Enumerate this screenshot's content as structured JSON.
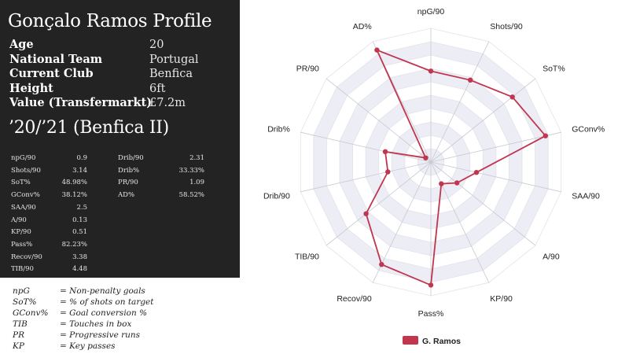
{
  "profile": {
    "title": "Gonçalo Ramos Profile",
    "rows": [
      {
        "label": "Age",
        "value": "20"
      },
      {
        "label": "National Team",
        "value": "Portugal"
      },
      {
        "label": "Current Club",
        "value": "Benfica"
      },
      {
        "label": "Height",
        "value": "6ft"
      },
      {
        "label": "Value (Transfermarkt)",
        "value": "£7.2m"
      }
    ],
    "season": "’20/’21 (Benfica II)",
    "stats_left": [
      {
        "label": "npG/90",
        "value": "0.9"
      },
      {
        "label": "Shots/90",
        "value": "3.14"
      },
      {
        "label": "SoT%",
        "value": "48.98%"
      },
      {
        "label": "GConv%",
        "value": "38.12%"
      },
      {
        "label": "SAA/90",
        "value": "2.5"
      },
      {
        "label": "A/90",
        "value": "0.13"
      },
      {
        "label": "KP/90",
        "value": "0.51"
      },
      {
        "label": "Pass%",
        "value": "82.23%"
      },
      {
        "label": "Recov/90",
        "value": "3.38"
      },
      {
        "label": "TIB/90",
        "value": "4.48"
      }
    ],
    "stats_right": [
      {
        "label": "Drib/90",
        "value": "2.31"
      },
      {
        "label": "Drib%",
        "value": "33.33%"
      },
      {
        "label": "PR/90",
        "value": "1.09"
      },
      {
        "label": "AD%",
        "value": "58.52%"
      }
    ]
  },
  "glossary": [
    {
      "abbr": "npG",
      "desc": "= Non-penalty goals"
    },
    {
      "abbr": "SoT%",
      "desc": "= % of shots on target"
    },
    {
      "abbr": "GConv%",
      "desc": "= Goal conversion %"
    },
    {
      "abbr": "TIB",
      "desc": "= Touches in box"
    },
    {
      "abbr": "PR",
      "desc": "= Progressive runs"
    },
    {
      "abbr": "KP",
      "desc": "= Key passes"
    }
  ],
  "chart_data": {
    "type": "radar",
    "axes": [
      "npG/90",
      "Shots/90",
      "SoT%",
      "GConv%",
      "SAA/90",
      "A/90",
      "KP/90",
      "Pass%",
      "Recov/90",
      "TIB/90",
      "Drib/90",
      "Drib%",
      "PR/90",
      "AD%"
    ],
    "series": [
      {
        "name": "G. Ramos",
        "color": "#c0364f",
        "values": [
          0.68,
          0.68,
          0.78,
          0.88,
          0.35,
          0.25,
          0.18,
          0.92,
          0.85,
          0.62,
          0.33,
          0.35,
          0.05,
          0.93
        ]
      }
    ],
    "range": [
      0,
      1
    ],
    "rings": 10,
    "legend_position": "bottom"
  },
  "colors": {
    "panel_bg": "#232323",
    "series": "#c0364f",
    "band": "#ededf6"
  }
}
